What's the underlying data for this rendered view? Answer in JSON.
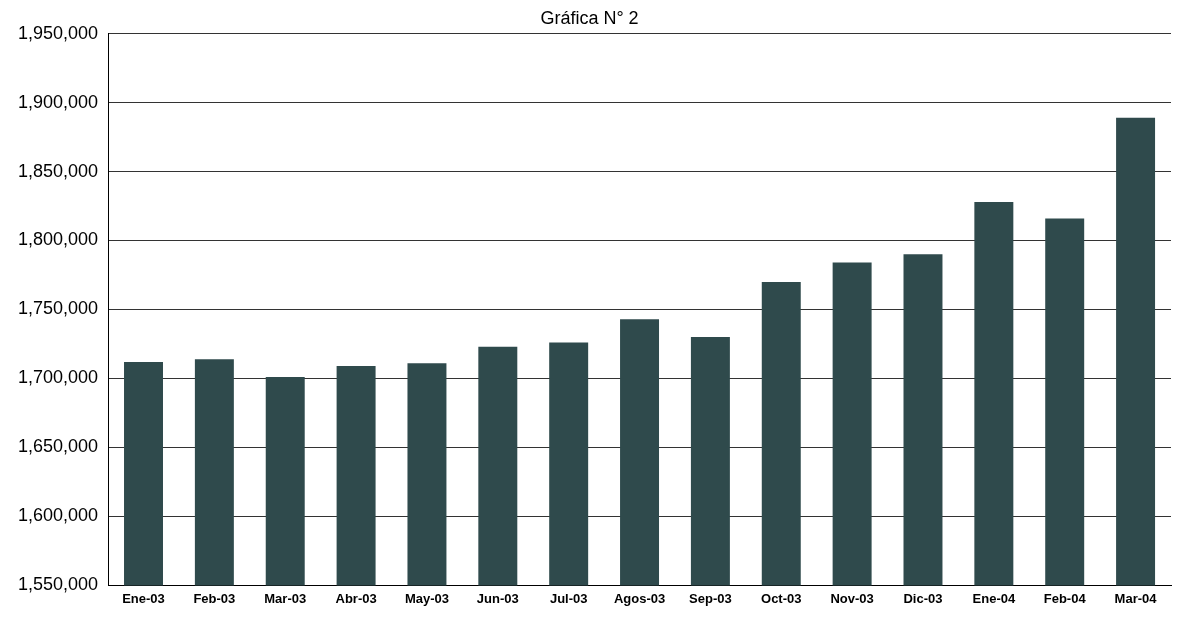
{
  "chart_data": {
    "type": "bar",
    "title": "Gráfica N° 2",
    "categories": [
      "Ene-03",
      "Feb-03",
      "Mar-03",
      "Abr-03",
      "May-03",
      "Jun-03",
      "Jul-03",
      "Agos-03",
      "Sep-03",
      "Oct-03",
      "Nov-03",
      "Dic-03",
      "Ene-04",
      "Feb-04",
      "Mar-04"
    ],
    "values": [
      1712000,
      1714000,
      1701000,
      1709000,
      1711000,
      1723000,
      1726000,
      1743000,
      1730000,
      1770000,
      1784000,
      1790000,
      1828000,
      1816000,
      1889000
    ],
    "color": "#2f4a4c",
    "ylim": [
      1550000,
      1950000
    ],
    "yticks": [
      {
        "value": 1550000,
        "label": "1,550,000"
      },
      {
        "value": 1600000,
        "label": "1,600,000"
      },
      {
        "value": 1650000,
        "label": "1,650,000"
      },
      {
        "value": 1700000,
        "label": "1,700,000"
      },
      {
        "value": 1750000,
        "label": "1,750,000"
      },
      {
        "value": 1800000,
        "label": "1,800,000"
      },
      {
        "value": 1850000,
        "label": "1,850,000"
      },
      {
        "value": 1900000,
        "label": "1,900,000"
      },
      {
        "value": 1950000,
        "label": "1,950,000"
      }
    ],
    "grid": "y"
  }
}
